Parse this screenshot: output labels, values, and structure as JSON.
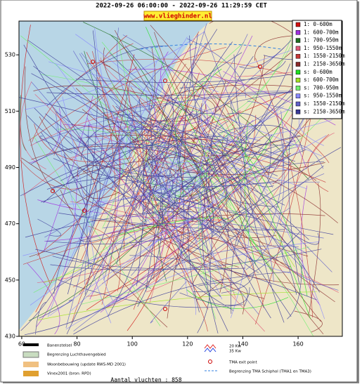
{
  "header": {
    "title": "2022-09-26 06:00:00 - 2022-09-26 11:29:59 CET",
    "link": "www.vlieghinder.nl"
  },
  "map": {
    "xlim": [
      59,
      176
    ],
    "ylim": [
      430,
      542
    ],
    "xticks": [
      60,
      80,
      100,
      120,
      140,
      160
    ],
    "yticks": [
      430,
      450,
      470,
      490,
      510,
      530
    ]
  },
  "legend": [
    {
      "label": "1: 0-600m",
      "color": "#d01010"
    },
    {
      "label": "1: 600-700m",
      "color": "#a030e0"
    },
    {
      "label": "1: 700-950m",
      "color": "#207020"
    },
    {
      "label": "1: 950-1550m",
      "color": "#e05878"
    },
    {
      "label": "1: 1550-2150m",
      "color": "#c83838"
    },
    {
      "label": "1: 2150-3650m",
      "color": "#8a2a2a"
    },
    {
      "label": "s: 0-600m",
      "color": "#20e020"
    },
    {
      "label": "s: 600-700m",
      "color": "#a0e020"
    },
    {
      "label": "s: 700-950m",
      "color": "#70f070"
    },
    {
      "label": "s: 950-1550m",
      "color": "#8888ff"
    },
    {
      "label": "s: 1550-2150m",
      "color": "#6060c8"
    },
    {
      "label": "s: 2150-3650m",
      "color": "#3a3a98"
    }
  ],
  "footer": {
    "items": [
      "Banenstelsel",
      "Begrenzing Luchthavengebied",
      "Woonbebouwing (update RWS-MD 2001)",
      "Vinex2001 (bron: RPD)"
    ],
    "noise": [
      "20 Kw",
      "35 Kw"
    ],
    "exit": "TMA exit point",
    "tma": "Begrenzing TMA Schiphol  (TMA1 en TMA3)",
    "count": "Aantal vluchten : 858"
  }
}
